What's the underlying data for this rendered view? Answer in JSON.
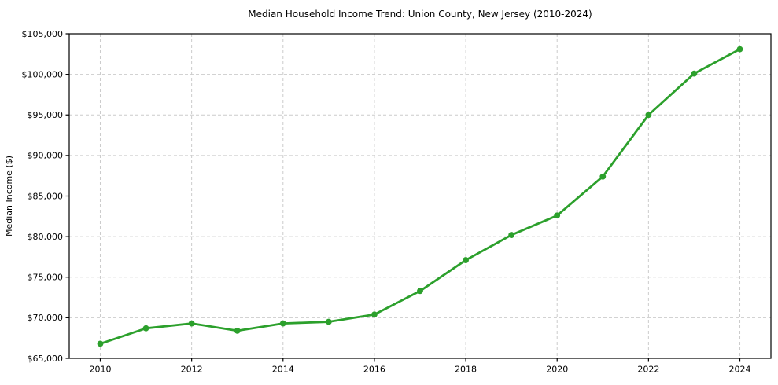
{
  "chart_data": {
    "type": "line",
    "title": "Median Household Income Trend: Union County, New Jersey (2010-2024)",
    "xlabel": "",
    "ylabel": "Median Income ($)",
    "x": [
      2010,
      2011,
      2012,
      2013,
      2014,
      2015,
      2016,
      2017,
      2018,
      2019,
      2020,
      2021,
      2022,
      2023,
      2024
    ],
    "series": [
      {
        "name": "Median Household Income",
        "values": [
          66800,
          68700,
          69300,
          68400,
          69300,
          69500,
          70400,
          73300,
          77100,
          80200,
          82600,
          87400,
          95000,
          100100,
          103100
        ],
        "color": "#2ca02c",
        "marker": "circle"
      }
    ],
    "xlim": [
      2009.32,
      2024.68
    ],
    "ylim": [
      65000,
      105000
    ],
    "xtick_values": [
      2010,
      2012,
      2014,
      2016,
      2018,
      2020,
      2022,
      2024
    ],
    "xtick_labels": [
      "2010",
      "2012",
      "2014",
      "2016",
      "2018",
      "2020",
      "2022",
      "2024"
    ],
    "ytick_values": [
      65000,
      70000,
      75000,
      80000,
      85000,
      90000,
      95000,
      100000,
      105000
    ],
    "ytick_labels": [
      "$65,000",
      "$70,000",
      "$75,000",
      "$80,000",
      "$85,000",
      "$90,000",
      "$95,000",
      "$100,000",
      "$105,000"
    ],
    "grid": true,
    "grid_style": "dashed",
    "grid_color": "#cccccc",
    "spine_color": "#000000",
    "background_color": "#ffffff",
    "legend": false
  }
}
